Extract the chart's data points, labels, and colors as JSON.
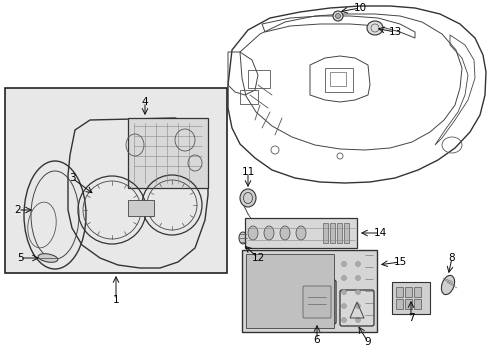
{
  "background_color": "#ffffff",
  "fig_width": 4.89,
  "fig_height": 3.6,
  "dpi": 100,
  "line_color": "#333333",
  "fill_light": "#e8e8e8",
  "fill_mid": "#cccccc",
  "fill_dark": "#aaaaaa"
}
